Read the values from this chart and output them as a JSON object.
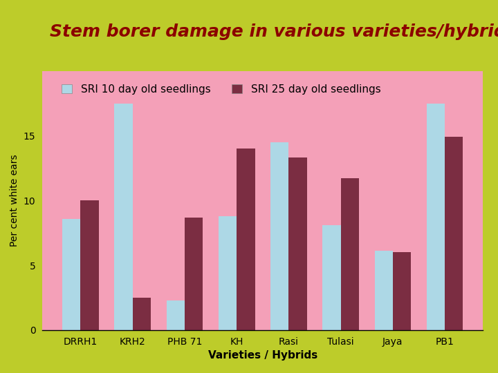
{
  "title": "Stem borer damage in various varieties/hybrids",
  "title_color": "#8B0000",
  "title_fontsize": 18,
  "categories": [
    "DRRH1",
    "KRH2",
    "PHB 71",
    "KH",
    "Rasi",
    "Tulasi",
    "Jaya",
    "PB1"
  ],
  "series": [
    {
      "label": "SRI 10 day old seedlings",
      "color": "#ADD8E6",
      "values": [
        8.6,
        17.5,
        2.3,
        8.8,
        14.5,
        8.1,
        6.1,
        17.5
      ]
    },
    {
      "label": "SRI 25 day old seedlings",
      "color": "#7B2D42",
      "values": [
        10.0,
        2.5,
        8.7,
        14.0,
        13.3,
        11.7,
        6.0,
        14.9
      ]
    }
  ],
  "xlabel": "Varieties / Hybrids",
  "ylabel": "Per cent white ears",
  "ylim": [
    0,
    20
  ],
  "yticks": [
    0,
    5,
    10,
    15
  ],
  "outer_bg_top": "#BDCC2A",
  "outer_bg_bottom": "#D4E86A",
  "plot_bg": "#F4A0B8",
  "plot_border_color": "#C0C0C0",
  "bar_width": 0.35,
  "legend_fontsize": 11,
  "axis_fontsize": 11,
  "tick_fontsize": 10,
  "xlabel_fontsize": 11,
  "ylabel_fontsize": 10
}
